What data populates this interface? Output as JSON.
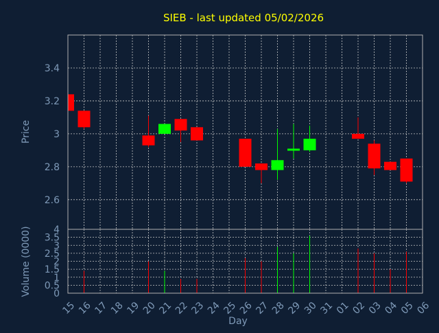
{
  "chart_data": {
    "type": "candlestick",
    "title": "SIEB - last updated 05/02/2026",
    "xlabel": "Day",
    "price_panel": {
      "ylabel": "Price",
      "ylim": [
        2.42,
        3.6
      ],
      "yticks": [
        "2.6",
        "2.8",
        "3",
        "3.2",
        "3.4"
      ],
      "ytick_values": [
        2.6,
        2.8,
        3.0,
        3.2,
        3.4
      ]
    },
    "volume_panel": {
      "ylabel": "Volume (0000)",
      "ylim": [
        0,
        4
      ],
      "yticks": [
        "0",
        "0.5",
        "1",
        "1.5",
        "2",
        "2.5",
        "3",
        "3.5",
        "4"
      ],
      "ytick_values": [
        0,
        0.5,
        1,
        1.5,
        2,
        2.5,
        3,
        3.5,
        4
      ]
    },
    "x_labels": [
      "15",
      "16",
      "17",
      "18",
      "19",
      "20",
      "21",
      "22",
      "23",
      "24",
      "25",
      "26",
      "27",
      "28",
      "29",
      "30",
      "31",
      "01",
      "02",
      "03",
      "04",
      "05",
      "06"
    ],
    "candles": [
      {
        "day": "15",
        "open": 3.24,
        "high": 3.24,
        "low": 3.14,
        "close": 3.14
      },
      {
        "day": "16",
        "open": 3.14,
        "high": 3.14,
        "low": 3.03,
        "close": 3.04
      },
      {
        "day": "20",
        "open": 2.99,
        "high": 3.11,
        "low": 2.92,
        "close": 2.93
      },
      {
        "day": "21",
        "open": 3.0,
        "high": 3.06,
        "low": 3.0,
        "close": 3.06
      },
      {
        "day": "22",
        "open": 3.09,
        "high": 3.09,
        "low": 2.95,
        "close": 3.02
      },
      {
        "day": "23",
        "open": 3.04,
        "high": 3.04,
        "low": 2.96,
        "close": 2.96
      },
      {
        "day": "26",
        "open": 2.97,
        "high": 2.97,
        "low": 2.8,
        "close": 2.8
      },
      {
        "day": "27",
        "open": 2.82,
        "high": 2.82,
        "low": 2.7,
        "close": 2.78
      },
      {
        "day": "28",
        "open": 2.78,
        "high": 3.03,
        "low": 2.72,
        "close": 2.84
      },
      {
        "day": "29",
        "open": 2.9,
        "high": 3.06,
        "low": 2.85,
        "close": 2.91
      },
      {
        "day": "30",
        "open": 2.9,
        "high": 3.05,
        "low": 2.89,
        "close": 2.97
      },
      {
        "day": "02",
        "open": 3.0,
        "high": 3.1,
        "low": 2.97,
        "close": 2.97
      },
      {
        "day": "03",
        "open": 2.94,
        "high": 2.96,
        "low": 2.75,
        "close": 2.79
      },
      {
        "day": "04",
        "open": 2.83,
        "high": 2.83,
        "low": 2.78,
        "close": 2.78
      },
      {
        "day": "05",
        "open": 2.85,
        "high": 2.85,
        "low": 2.7,
        "close": 2.71
      }
    ],
    "volume": [
      {
        "day": "16",
        "value": 1.4,
        "direction": "down"
      },
      {
        "day": "20",
        "value": 2.0,
        "direction": "down"
      },
      {
        "day": "21",
        "value": 1.4,
        "direction": "up"
      },
      {
        "day": "22",
        "value": 0.9,
        "direction": "down"
      },
      {
        "day": "23",
        "value": 0.9,
        "direction": "down"
      },
      {
        "day": "26",
        "value": 2.2,
        "direction": "down"
      },
      {
        "day": "27",
        "value": 2.0,
        "direction": "down"
      },
      {
        "day": "28",
        "value": 2.9,
        "direction": "up"
      },
      {
        "day": "29",
        "value": 2.5,
        "direction": "up"
      },
      {
        "day": "30",
        "value": 3.6,
        "direction": "up"
      },
      {
        "day": "02",
        "value": 2.8,
        "direction": "down"
      },
      {
        "day": "03",
        "value": 2.5,
        "direction": "down"
      },
      {
        "day": "04",
        "value": 1.5,
        "direction": "down"
      },
      {
        "day": "05",
        "value": 2.6,
        "direction": "down"
      }
    ],
    "grid": true,
    "colors": {
      "background": "#0f1e33",
      "title": "#ffff00",
      "axis_text": "#7f9ab8",
      "grid": "#c8c8c8",
      "up": "#00ff00",
      "down": "#ff0000",
      "frame": "#b0b0b0"
    }
  }
}
